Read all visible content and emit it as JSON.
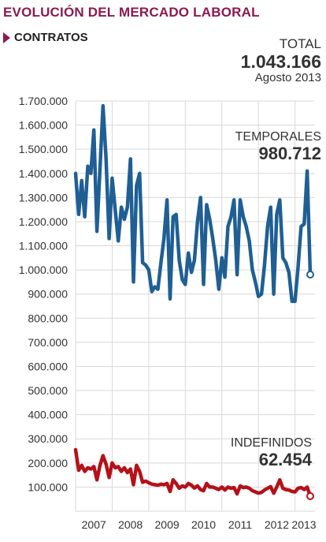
{
  "header": {
    "title": "EVOLUCIÓN DEL MERCADO LABORAL",
    "subtitle": "CONTRATOS"
  },
  "total": {
    "label": "TOTAL",
    "value": "1.043.166",
    "date": "Agosto 2013"
  },
  "colors": {
    "title": "#8b1a4f",
    "temporales": "#1f5f94",
    "indefinidos": "#b3121a",
    "grid": "#d9d9d9"
  },
  "chart_data": {
    "type": "line",
    "title": "EVOLUCIÓN DEL MERCADO LABORAL",
    "subtitle": "CONTRATOS",
    "ylim": [
      0,
      1700000
    ],
    "yticks": [
      "1.700.000",
      "1.600.000",
      "1.500.000",
      "1.400.000",
      "1.300.000",
      "1.200.000",
      "1.100.000",
      "1.000.000",
      "900.000",
      "800.000",
      "700.000",
      "600.000",
      "500.000",
      "400.000",
      "300.000",
      "200.000",
      "100.000"
    ],
    "ytick_values": [
      1700000,
      1600000,
      1500000,
      1400000,
      1300000,
      1200000,
      1100000,
      1000000,
      900000,
      800000,
      700000,
      600000,
      500000,
      400000,
      300000,
      200000,
      100000
    ],
    "xticks": [
      "2007",
      "2008",
      "2009",
      "2010",
      "2011",
      "2012",
      "2013"
    ],
    "x_start": "2007-01",
    "x_end": "2013-08",
    "grid": true,
    "series": [
      {
        "name": "TEMPORALES",
        "last_label": "980.712",
        "color": "#1f5f94",
        "values": [
          1400000,
          1230000,
          1370000,
          1220000,
          1430000,
          1400000,
          1580000,
          1160000,
          1420000,
          1680000,
          1460000,
          1130000,
          1380000,
          1250000,
          1120000,
          1260000,
          1210000,
          1260000,
          1460000,
          950000,
          1350000,
          1400000,
          1030000,
          1020000,
          1000000,
          910000,
          930000,
          920000,
          1030000,
          1130000,
          1290000,
          880000,
          1220000,
          1230000,
          1040000,
          960000,
          940000,
          1070000,
          990000,
          1040000,
          1200000,
          1300000,
          940000,
          1270000,
          1210000,
          1130000,
          1040000,
          920000,
          1050000,
          970000,
          1180000,
          1220000,
          1290000,
          980000,
          1290000,
          1220000,
          1180000,
          1120000,
          1000000,
          950000,
          890000,
          900000,
          1020000,
          1180000,
          1260000,
          900000,
          1230000,
          1290000,
          1050000,
          1030000,
          990000,
          870000,
          870000,
          1010000,
          1180000,
          1190000,
          1410000,
          980712
        ]
      },
      {
        "name": "INDEFINIDOS",
        "last_label": "62.454",
        "color": "#b3121a",
        "values": [
          255000,
          170000,
          190000,
          165000,
          180000,
          175000,
          185000,
          130000,
          190000,
          230000,
          195000,
          140000,
          200000,
          180000,
          185000,
          165000,
          180000,
          160000,
          175000,
          110000,
          190000,
          165000,
          120000,
          125000,
          118000,
          112000,
          110000,
          108000,
          112000,
          110000,
          115000,
          82000,
          130000,
          115000,
          95000,
          105000,
          100000,
          115000,
          108000,
          96000,
          105000,
          90000,
          85000,
          115000,
          100000,
          100000,
          95000,
          90000,
          100000,
          88000,
          100000,
          95000,
          98000,
          72000,
          105000,
          98000,
          100000,
          95000,
          85000,
          80000,
          75000,
          78000,
          88000,
          95000,
          102000,
          75000,
          100000,
          130000,
          95000,
          90000,
          88000,
          82000,
          80000,
          95000,
          98000,
          90000,
          100000,
          62454
        ]
      }
    ]
  }
}
